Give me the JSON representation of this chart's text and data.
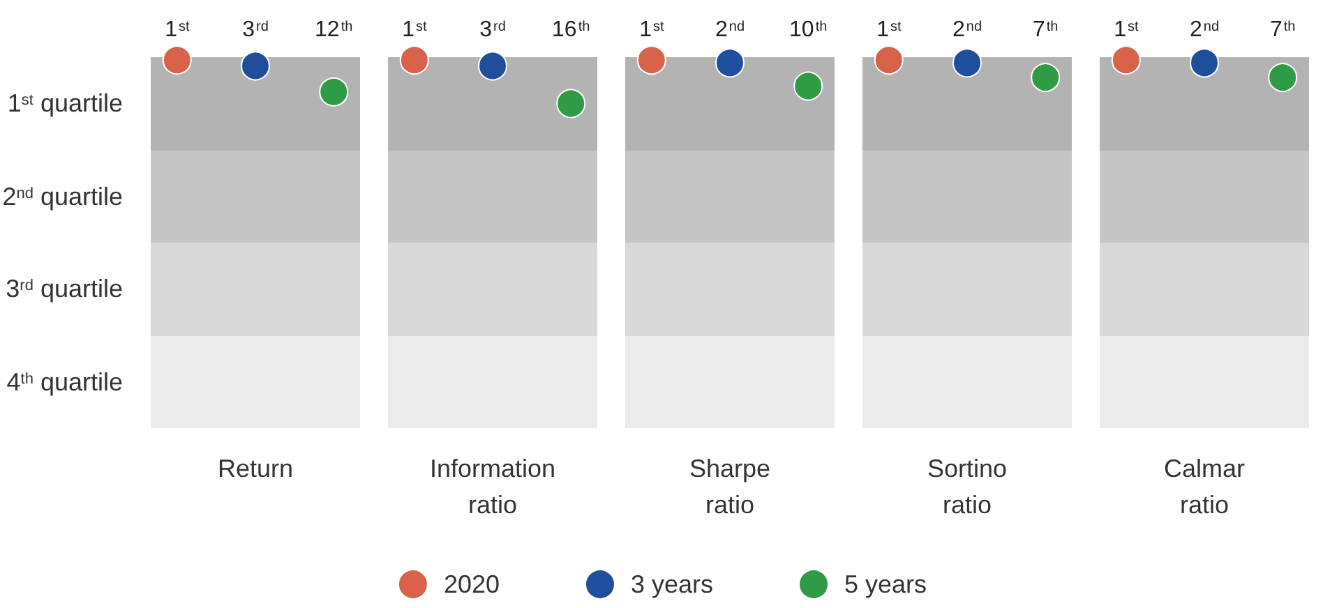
{
  "chart_data": {
    "type": "other",
    "categories": [
      "Return",
      "Information ratio",
      "Sharpe ratio",
      "Sortino ratio",
      "Calmar ratio"
    ],
    "legend": "bottom",
    "annotations": [
      "1$^{st}$ quartile",
      "2$^{nd}$ quartile",
      "3$^{rd}$ quartile",
      "4$^{th}$ quartile"
    ],
    "series": [
      {
        "name": "2020",
        "color": "#d9634a",
        "values": [
          1,
          1,
          1,
          1,
          1
        ],
        "value_labels": [
          "1$^{st}$",
          "1$^{st}$",
          "1$^{st}$",
          "1$^{st}$",
          "1$^{st}$"
        ]
      },
      {
        "name": "3 years",
        "color": "#1f4e9c",
        "values": [
          3,
          3,
          2,
          2,
          2
        ],
        "value_labels": [
          "3$^{rd}$",
          "3$^{rd}$",
          "2$^{nd}$",
          "2$^{nd}$",
          "2$^{nd}$"
        ]
      },
      {
        "name": "5 years",
        "color": "#2e9b45",
        "values": [
          12,
          16,
          10,
          7,
          7
        ],
        "value_labels": [
          "12$^{th}$",
          "16$^{th}$",
          "10$^{th}$",
          "7$^{th}$",
          "7$^{th}$"
        ]
      }
    ]
  }
}
